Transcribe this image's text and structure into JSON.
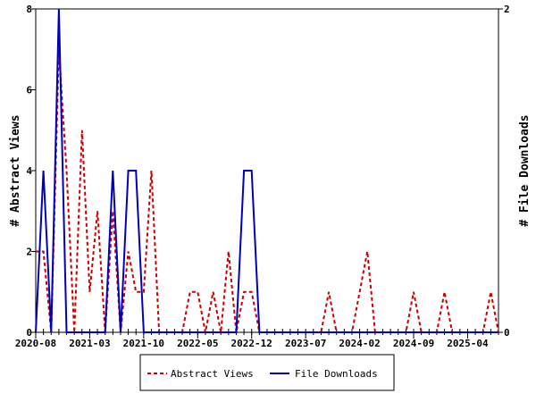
{
  "chart_data": {
    "type": "line",
    "x": [
      "2020-08",
      "2020-09",
      "2020-10",
      "2020-11",
      "2020-12",
      "2021-01",
      "2021-02",
      "2021-03",
      "2021-04",
      "2021-05",
      "2021-06",
      "2021-07",
      "2021-08",
      "2021-09",
      "2021-10",
      "2021-11",
      "2021-12",
      "2022-01",
      "2022-02",
      "2022-03",
      "2022-04",
      "2022-05",
      "2022-06",
      "2022-07",
      "2022-08",
      "2022-09",
      "2022-10",
      "2022-11",
      "2022-12",
      "2023-01",
      "2023-02",
      "2023-03",
      "2023-04",
      "2023-05",
      "2023-06",
      "2023-07",
      "2023-08",
      "2023-09",
      "2023-10",
      "2023-11",
      "2023-12",
      "2024-01",
      "2024-02",
      "2024-03",
      "2024-04",
      "2024-05",
      "2024-06",
      "2024-07",
      "2024-08",
      "2024-09",
      "2024-10",
      "2024-11",
      "2024-12",
      "2025-01",
      "2025-02",
      "2025-03",
      "2025-04",
      "2025-05",
      "2025-06",
      "2025-07",
      "2025-08"
    ],
    "x_tick_labels": [
      "2020-08",
      "2021-03",
      "2021-10",
      "2022-05",
      "2022-12",
      "2023-07",
      "2024-02",
      "2024-09",
      "2025-04"
    ],
    "series": [
      {
        "name": "Abstract Views",
        "axis": "left",
        "color": "#cc0000",
        "style": "dashed",
        "values": [
          2,
          2,
          0,
          7,
          4,
          0,
          5,
          1,
          3,
          0,
          3,
          0,
          2,
          1,
          1,
          4,
          0,
          0,
          0,
          0,
          1,
          1,
          0,
          1,
          0,
          2,
          0,
          1,
          1,
          0,
          0,
          0,
          0,
          0,
          0,
          0,
          0,
          0,
          1,
          0,
          0,
          0,
          1,
          2,
          0,
          0,
          0,
          0,
          0,
          1,
          0,
          0,
          0,
          1,
          0,
          0,
          0,
          0,
          0,
          1,
          0
        ]
      },
      {
        "name": "File Downloads",
        "axis": "right",
        "color": "#0000bb",
        "style": "solid",
        "values": [
          0,
          1,
          0,
          2,
          0,
          0,
          0,
          0,
          0,
          0,
          1,
          0,
          1,
          1,
          0,
          0,
          0,
          0,
          0,
          0,
          0,
          0,
          0,
          0,
          0,
          0,
          0,
          1,
          1,
          0,
          0,
          0,
          0,
          0,
          0,
          0,
          0,
          0,
          0,
          0,
          0,
          0,
          0,
          0,
          0,
          0,
          0,
          0,
          0,
          0,
          0,
          0,
          0,
          0,
          0,
          0,
          0,
          0,
          0,
          0,
          0
        ]
      }
    ],
    "ylabel": "# Abstract Views",
    "y2label": "# File Downloads",
    "ylim": [
      0,
      8
    ],
    "y2lim": [
      0,
      2
    ],
    "y_ticks": [
      "0",
      "2",
      "4",
      "6",
      "8"
    ],
    "y2_ticks": [
      "0",
      "2"
    ],
    "legend": {
      "placement": "bottom",
      "entries": [
        "Abstract Views",
        "File Downloads"
      ]
    },
    "grid": false
  }
}
